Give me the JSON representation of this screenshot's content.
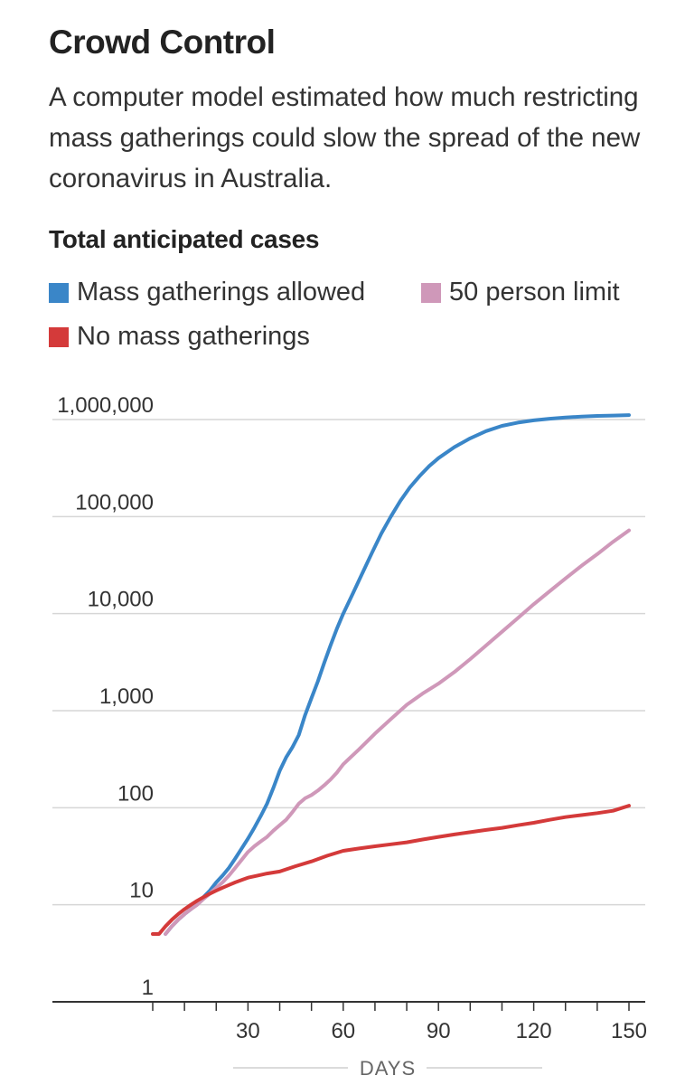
{
  "header": {
    "title": "Crowd Control",
    "subtitle": "A computer model estimated how much restricting mass gatherings could slow the spread of the new coronavirus in Australia."
  },
  "chart_data": {
    "type": "line",
    "title": "Total anticipated cases",
    "xlabel": "DAYS",
    "ylabel": "",
    "y_scale": "log",
    "xlim": [
      0,
      150
    ],
    "ylim": [
      1,
      1000000
    ],
    "x_ticks": [
      30,
      60,
      90,
      120,
      150
    ],
    "x_tick_labels": [
      "30",
      "60",
      "90",
      "120",
      "150"
    ],
    "y_ticks": [
      1,
      10,
      100,
      1000,
      10000,
      100000,
      1000000
    ],
    "y_tick_labels": [
      "1",
      "10",
      "100",
      "1,000",
      "10,000",
      "100,000",
      "1,000,000"
    ],
    "grid": "horizontal",
    "legend_position": "top-left",
    "series": [
      {
        "name": "Mass gatherings allowed",
        "color": "#3a86c8",
        "x": [
          4,
          6,
          8,
          10,
          12,
          14,
          16,
          18,
          20,
          22,
          24,
          26,
          28,
          30,
          32,
          34,
          36,
          38,
          40,
          42,
          44,
          46,
          48,
          50,
          52,
          54,
          56,
          58,
          60,
          63,
          66,
          69,
          72,
          75,
          78,
          81,
          84,
          87,
          90,
          95,
          100,
          105,
          110,
          115,
          120,
          125,
          130,
          135,
          140,
          145,
          150
        ],
        "values": [
          5,
          6,
          7,
          8,
          9,
          10.5,
          12,
          14,
          17,
          20,
          24,
          30,
          38,
          48,
          62,
          82,
          110,
          160,
          240,
          330,
          420,
          560,
          900,
          1350,
          2000,
          3100,
          4700,
          7000,
          10000,
          16000,
          26000,
          42000,
          67000,
          100000,
          145000,
          200000,
          260000,
          330000,
          400000,
          520000,
          640000,
          760000,
          860000,
          930000,
          980000,
          1020000,
          1050000,
          1070000,
          1090000,
          1100000,
          1110000
        ]
      },
      {
        "name": "50 person limit",
        "color": "#cf98b9",
        "x": [
          4,
          6,
          8,
          10,
          12,
          14,
          16,
          18,
          20,
          22,
          24,
          26,
          28,
          30,
          32,
          34,
          36,
          38,
          40,
          42,
          44,
          46,
          48,
          50,
          52,
          54,
          56,
          58,
          60,
          65,
          70,
          75,
          80,
          85,
          90,
          95,
          100,
          105,
          110,
          115,
          120,
          125,
          130,
          135,
          140,
          145,
          150
        ],
        "values": [
          5,
          6,
          7,
          8,
          9,
          10,
          11.5,
          13,
          15,
          17,
          20,
          24,
          29,
          35,
          40,
          45,
          50,
          58,
          66,
          75,
          90,
          110,
          125,
          135,
          150,
          170,
          195,
          230,
          280,
          400,
          580,
          820,
          1150,
          1500,
          1900,
          2500,
          3400,
          4700,
          6500,
          9000,
          12500,
          17000,
          23000,
          31000,
          41000,
          55000,
          72000
        ]
      },
      {
        "name": "No mass gatherings",
        "color": "#d43a3a",
        "x": [
          0,
          2,
          4,
          6,
          8,
          10,
          12,
          14,
          16,
          18,
          20,
          22,
          24,
          26,
          28,
          30,
          33,
          36,
          40,
          45,
          50,
          55,
          60,
          65,
          70,
          75,
          80,
          85,
          90,
          95,
          100,
          105,
          110,
          115,
          120,
          125,
          130,
          135,
          140,
          145,
          150
        ],
        "values": [
          5,
          5,
          6,
          7,
          8,
          9,
          10,
          11,
          12,
          13,
          14,
          15,
          16,
          17,
          18,
          19,
          20,
          21,
          22,
          25,
          28,
          32,
          36,
          38,
          40,
          42,
          44,
          47,
          50,
          53,
          56,
          59,
          62,
          66,
          70,
          75,
          80,
          84,
          88,
          93,
          105
        ]
      }
    ]
  }
}
